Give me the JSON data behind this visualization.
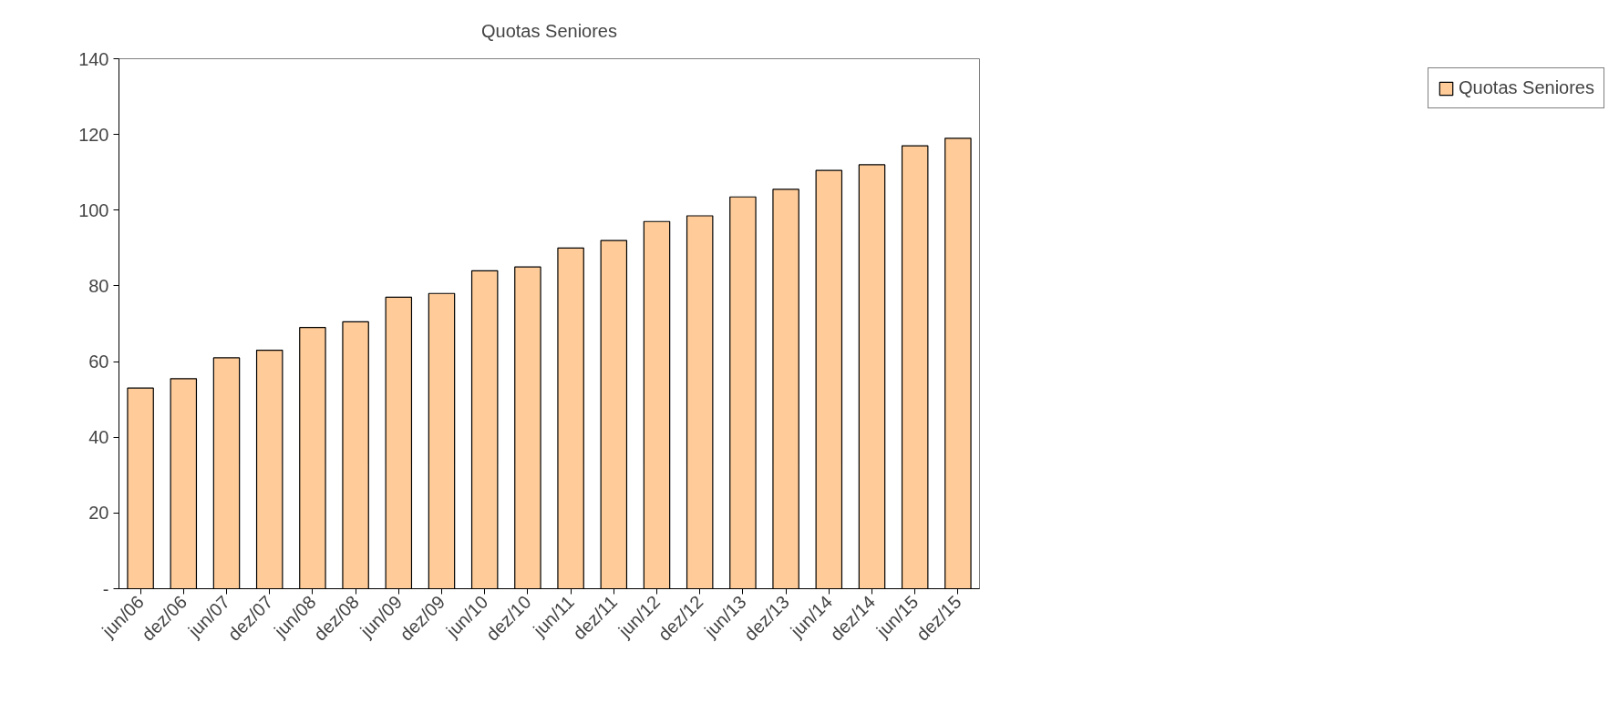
{
  "chart_data": {
    "type": "bar",
    "title": "Quotas Seniores",
    "categories": [
      "jun/06",
      "dez/06",
      "jun/07",
      "dez/07",
      "jun/08",
      "dez/08",
      "jun/09",
      "dez/09",
      "jun/10",
      "dez/10",
      "jun/11",
      "dez/11",
      "jun/12",
      "dez/12",
      "jun/13",
      "dez/13",
      "jun/14",
      "dez/14",
      "jun/15",
      "dez/15"
    ],
    "series": [
      {
        "name": "Quotas Seniores",
        "color": "#ffcc99",
        "values": [
          53,
          55.5,
          61,
          63,
          69,
          70.5,
          77,
          78,
          84,
          85,
          90,
          92,
          97,
          98.5,
          103.5,
          105.5,
          110.5,
          112,
          117,
          119
        ]
      }
    ],
    "ylim": [
      0,
      140
    ],
    "yticks": [
      {
        "value": 0,
        "label": "-"
      },
      20,
      40,
      60,
      80,
      100,
      120,
      140
    ],
    "grid": false,
    "legend": "right"
  }
}
